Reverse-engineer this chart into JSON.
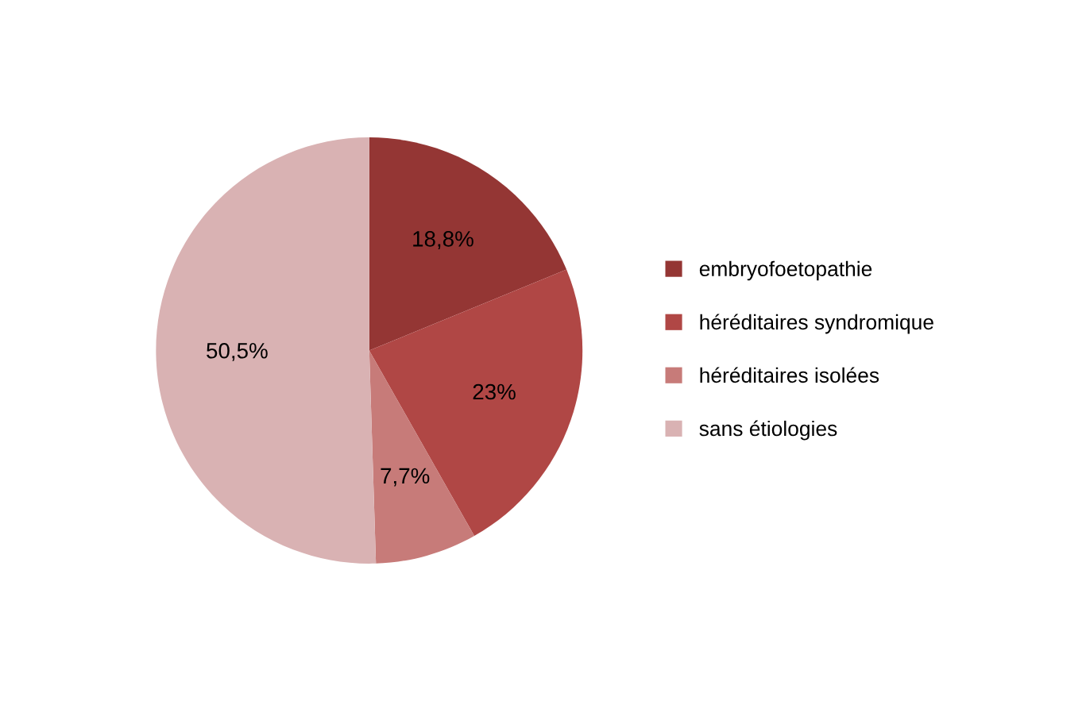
{
  "chart_data": {
    "type": "pie",
    "categories": [
      "embryofoetopathie",
      "héréditaires syndromique",
      "héréditaires isolées",
      "sans étiologies"
    ],
    "values": [
      18.8,
      23,
      7.7,
      50.5
    ],
    "value_labels": [
      "18,8%",
      "23%",
      "7,7%",
      "50,5%"
    ],
    "colors": [
      "#943634",
      "#b04745",
      "#c77b79",
      "#d9b2b3"
    ],
    "legend": "right"
  }
}
